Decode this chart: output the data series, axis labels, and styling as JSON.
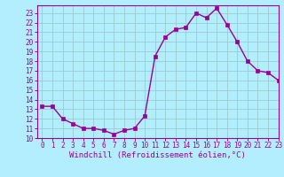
{
  "x": [
    0,
    1,
    2,
    3,
    4,
    5,
    6,
    7,
    8,
    9,
    10,
    11,
    12,
    13,
    14,
    15,
    16,
    17,
    18,
    19,
    20,
    21,
    22,
    23
  ],
  "y": [
    13.3,
    13.3,
    12.0,
    11.5,
    11.0,
    11.0,
    10.8,
    10.4,
    10.8,
    11.0,
    12.3,
    18.5,
    20.5,
    21.3,
    21.5,
    23.0,
    22.5,
    23.5,
    21.8,
    20.0,
    18.0,
    17.0,
    16.8,
    16.0
  ],
  "color": "#990099",
  "background_color": "#b3eeff",
  "grid_color": "#99cccc",
  "xlabel": "Windchill (Refroidissement éolien,°C)",
  "ylim": [
    10,
    23.8
  ],
  "xlim": [
    -0.5,
    23
  ],
  "yticks": [
    10,
    11,
    12,
    13,
    14,
    15,
    16,
    17,
    18,
    19,
    20,
    21,
    22,
    23
  ],
  "xticks": [
    0,
    1,
    2,
    3,
    4,
    5,
    6,
    7,
    8,
    9,
    10,
    11,
    12,
    13,
    14,
    15,
    16,
    17,
    18,
    19,
    20,
    21,
    22,
    23
  ],
  "line_width": 1.0,
  "marker_size": 2.5,
  "tick_fontsize": 5.5,
  "xlabel_fontsize": 6.5
}
